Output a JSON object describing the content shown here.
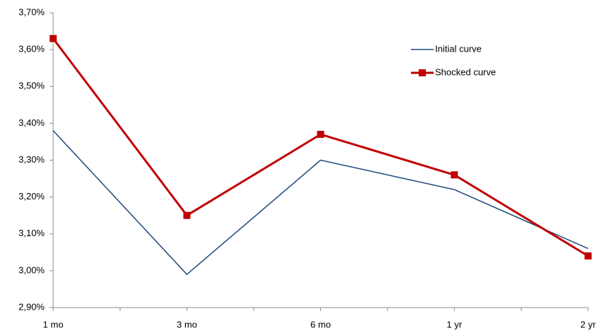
{
  "chart_data": {
    "type": "line",
    "categories": [
      "1 mo",
      "3 mo",
      "6 mo",
      "1 yr",
      "2 yr"
    ],
    "series": [
      {
        "name": "Initial curve",
        "color": "#1f497d",
        "values": [
          3.38,
          2.99,
          3.3,
          3.22,
          3.06
        ]
      },
      {
        "name": "Shocked curve",
        "color": "#c00000",
        "marker": "square",
        "values": [
          3.63,
          3.15,
          3.37,
          3.26,
          3.04
        ]
      }
    ],
    "ylim": [
      2.9,
      3.7
    ],
    "yticks": [
      {
        "value": 2.9,
        "label": "2,90%"
      },
      {
        "value": 3.0,
        "label": "3,00%"
      },
      {
        "value": 3.1,
        "label": "3,10%"
      },
      {
        "value": 3.2,
        "label": "3,20%"
      },
      {
        "value": 3.3,
        "label": "3,30%"
      },
      {
        "value": 3.4,
        "label": "3,40%"
      },
      {
        "value": 3.5,
        "label": "3,50%"
      },
      {
        "value": 3.6,
        "label": "3,60%"
      },
      {
        "value": 3.7,
        "label": "3,70%"
      }
    ],
    "grid": false,
    "legend": "upper right"
  }
}
